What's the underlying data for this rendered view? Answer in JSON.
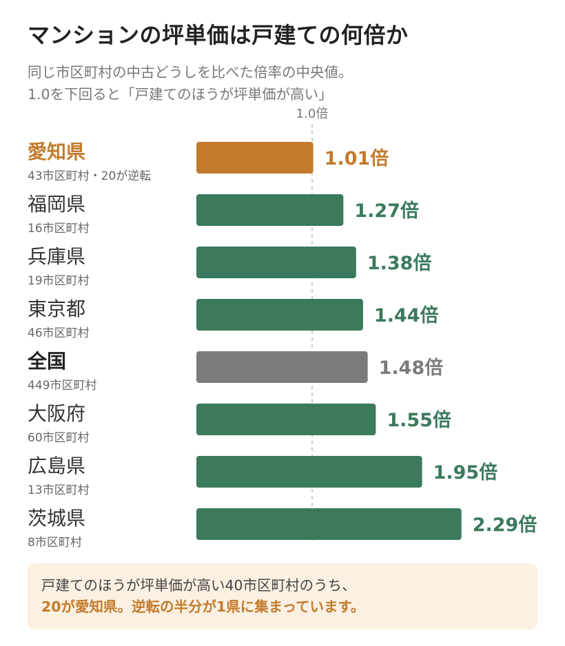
{
  "title": "マンションの坪単価は戸建ての何倍か",
  "subtitle_lines": [
    "同じ市区町村の中古どうしを比べた倍率の中央値。",
    "1.0を下回ると「戸建てのほうが坪単価が高い」"
  ],
  "chart_data": {
    "type": "bar",
    "orientation": "horizontal",
    "reference_line": {
      "value": 1.0,
      "label": "1.0倍"
    },
    "value_suffix": "倍",
    "colors": {
      "highlight": "#c27b2c",
      "default": "#3b7a5c",
      "national": "#7b7b7b"
    },
    "categories": [
      {
        "name": "愛知県",
        "sub": "43市区町村・20が逆転",
        "value": 1.01,
        "style": "highlight"
      },
      {
        "name": "福岡県",
        "sub": "16市区町村",
        "value": 1.27,
        "style": "default"
      },
      {
        "name": "兵庫県",
        "sub": "19市区町村",
        "value": 1.38,
        "style": "default"
      },
      {
        "name": "東京都",
        "sub": "46市区町村",
        "value": 1.44,
        "style": "default"
      },
      {
        "name": "全国",
        "sub": "449市区町村",
        "value": 1.48,
        "style": "national"
      },
      {
        "name": "大阪府",
        "sub": "60市区町村",
        "value": 1.55,
        "style": "default"
      },
      {
        "name": "広島県",
        "sub": "13市区町村",
        "value": 1.95,
        "style": "default"
      },
      {
        "name": "茨城県",
        "sub": "8市区町村",
        "value": 2.29,
        "style": "default"
      }
    ]
  },
  "note": {
    "line1": "戸建てのほうが坪単価が高い40市区町村のうち、",
    "line2": "20が愛知県。逆転の半分が1県に集まっています。"
  }
}
